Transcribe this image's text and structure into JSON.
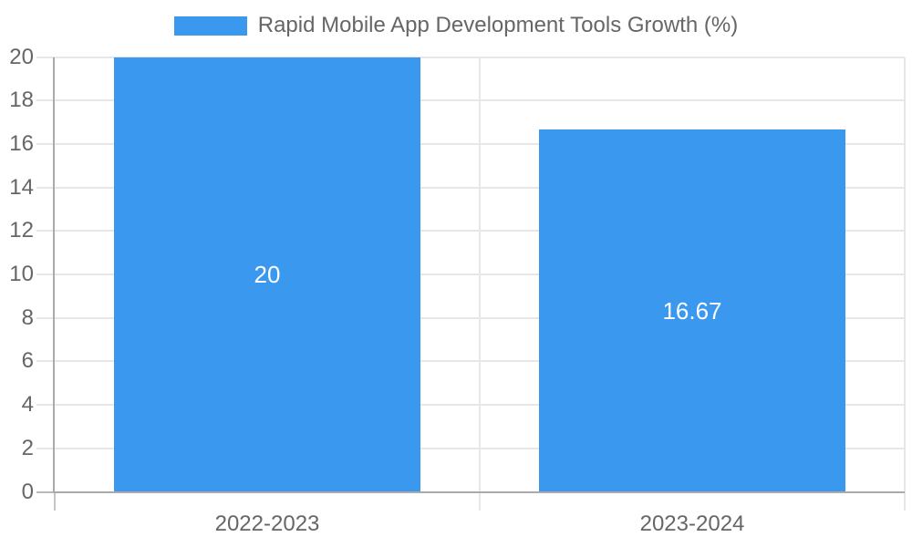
{
  "chart_data": {
    "type": "bar",
    "title": "Rapid Mobile App Development Tools Growth (%)",
    "categories": [
      "2022-2023",
      "2023-2024"
    ],
    "values": [
      20,
      16.67
    ],
    "value_labels": [
      "20",
      "16.67"
    ],
    "y_ticks": [
      0,
      2,
      4,
      6,
      8,
      10,
      12,
      14,
      16,
      18,
      20
    ],
    "ylim": [
      0,
      20
    ],
    "xlabel": "",
    "ylabel": "",
    "grid": true,
    "legend_position": "top",
    "colors": {
      "bar": "#3A99EE",
      "bar_value_label": "#ffffff",
      "text": "#666666",
      "gridline": "#e7e7e7",
      "axis": "#aaaaaa",
      "background": "#ffffff"
    }
  }
}
